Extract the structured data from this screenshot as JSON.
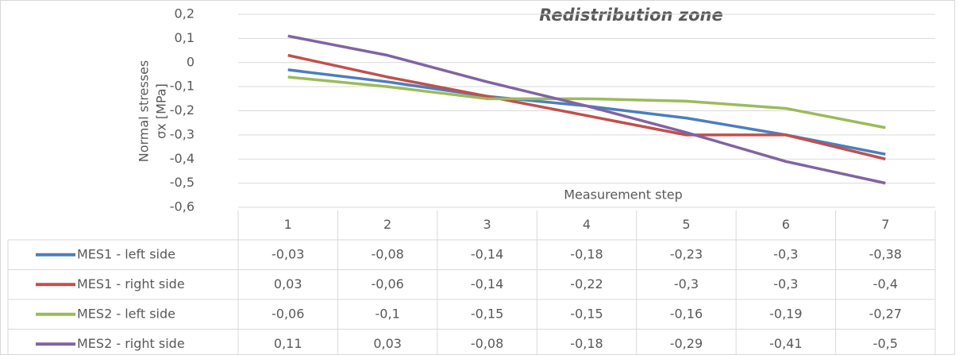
{
  "chart_data": {
    "type": "line",
    "title": "Redistribution zone",
    "ylabel": [
      "Normal stresses",
      "σx [MPa]"
    ],
    "xlabel": "Measurement step",
    "categories": [
      "1",
      "2",
      "3",
      "4",
      "5",
      "6",
      "7"
    ],
    "ylim": [
      -0.6,
      0.2
    ],
    "yticks": [
      {
        "value": -0.6,
        "label": "-0,6"
      },
      {
        "value": -0.5,
        "label": "-0,5"
      },
      {
        "value": -0.4,
        "label": "-0,4"
      },
      {
        "value": -0.3,
        "label": "-0,3"
      },
      {
        "value": -0.2,
        "label": "-0,2"
      },
      {
        "value": -0.1,
        "label": "-0,1"
      },
      0,
      {
        "value": 0.1,
        "label": "0,1"
      },
      {
        "value": 0.2,
        "label": "0,2"
      }
    ],
    "grid": true,
    "series": [
      {
        "name": "MES1 - left side",
        "color": "#4a7ebf",
        "values": [
          -0.03,
          -0.08,
          -0.14,
          -0.18,
          -0.23,
          -0.3,
          -0.38
        ],
        "value_labels": [
          "-0,03",
          "-0,08",
          "-0,14",
          "-0,18",
          "-0,23",
          "-0,3",
          "-0,38"
        ]
      },
      {
        "name": "MES1 - right side",
        "color": "#c0504d",
        "values": [
          0.03,
          -0.06,
          -0.14,
          -0.22,
          -0.3,
          -0.3,
          -0.4
        ],
        "value_labels": [
          "0,03",
          "-0,06",
          "-0,14",
          "-0,22",
          "-0,3",
          "-0,3",
          "-0,4"
        ]
      },
      {
        "name": "MES2 - left side",
        "color": "#9bbb59",
        "values": [
          -0.06,
          -0.1,
          -0.15,
          -0.15,
          -0.16,
          -0.19,
          -0.27
        ],
        "value_labels": [
          "-0,06",
          "-0,1",
          "-0,15",
          "-0,15",
          "-0,16",
          "-0,19",
          "-0,27"
        ]
      },
      {
        "name": "MES2  - right side",
        "color": "#8064a2",
        "values": [
          0.11,
          0.03,
          -0.08,
          -0.18,
          -0.29,
          -0.41,
          -0.5
        ],
        "value_labels": [
          "0,11",
          "0,03",
          "-0,08",
          "-0,18",
          "-0,29",
          "-0,41",
          "-0,5"
        ]
      }
    ]
  }
}
